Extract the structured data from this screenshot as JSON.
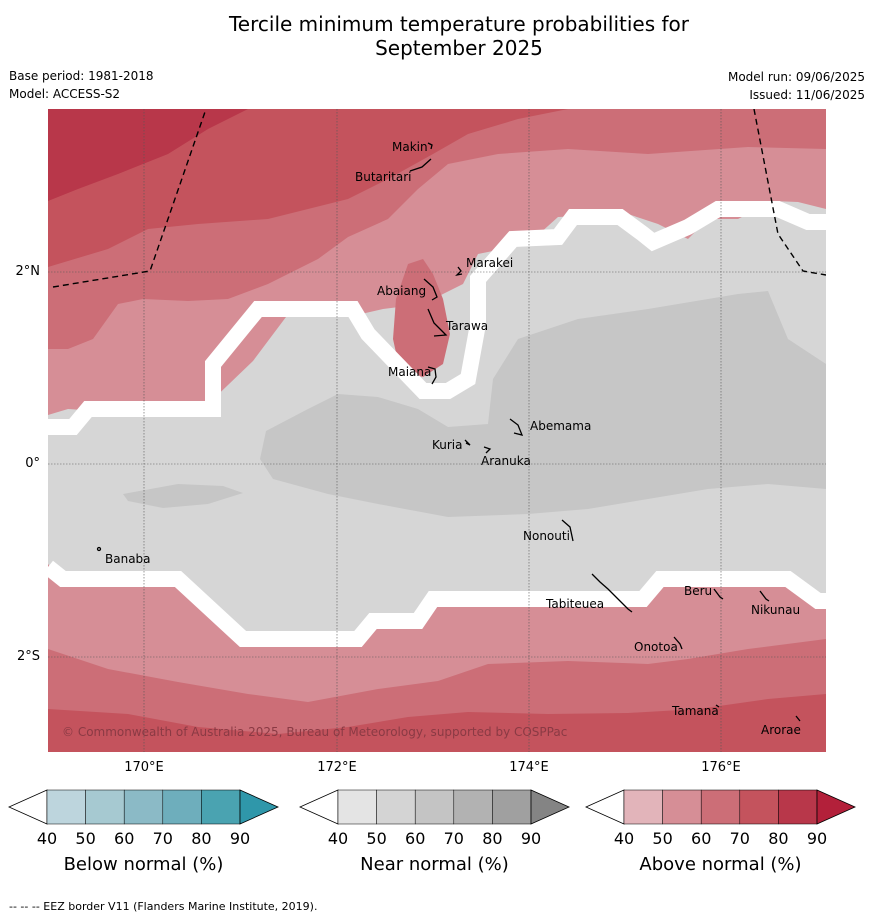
{
  "title_line1": "Tercile minimum temperature probabilities for",
  "title_line2": "September 2025",
  "base_period": "Base period: 1981-2018",
  "model": "Model: ACCESS-S2",
  "model_run": "Model run: 09/06/2025",
  "issued": "Issued: 11/06/2025",
  "copyright": "© Commonwealth of Australia 2025, Bureau of Meteorology, supported by COSPPac",
  "footnote": "--  --  -- EEZ border V11 (Flanders Marine Institute, 2019).",
  "lat_labels": [
    "2°N",
    "0°",
    "2°S"
  ],
  "lon_labels": [
    "170°E",
    "172°E",
    "174°E",
    "176°E"
  ],
  "places": [
    "Makin",
    "Butaritari",
    "Marakei",
    "Abaiang",
    "Tarawa",
    "Maiana",
    "Abemama",
    "Kuria",
    "Aranuka",
    "Banaba",
    "Nonouti",
    "Tabiteuea",
    "Beru",
    "Nikunau",
    "Onotoa",
    "Tamana",
    "Arorae"
  ],
  "legends": [
    {
      "title": "Below normal (%)",
      "ticks": [
        "40",
        "50",
        "60",
        "70",
        "80",
        "90"
      ],
      "colors": [
        "#ffffff",
        "#bdd5dd",
        "#a6c9d1",
        "#8bbac6",
        "#6eaebc",
        "#4aa3b1",
        "#2f97aa"
      ]
    },
    {
      "title": "Near normal (%)",
      "ticks": [
        "40",
        "50",
        "60",
        "70",
        "80",
        "90"
      ],
      "colors": [
        "#ffffff",
        "#e4e4e4",
        "#d4d4d4",
        "#c4c4c4",
        "#b2b2b2",
        "#a0a0a0",
        "#848484"
      ]
    },
    {
      "title": "Above normal (%)",
      "ticks": [
        "40",
        "50",
        "60",
        "70",
        "80",
        "90"
      ],
      "colors": [
        "#ffffff",
        "#e2b4ba",
        "#d68e96",
        "#cc6e77",
        "#c4535d",
        "#b8374a",
        "#b3203a"
      ]
    }
  ]
}
